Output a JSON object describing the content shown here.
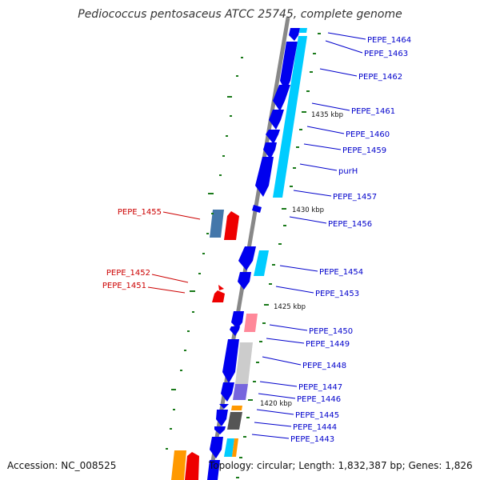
{
  "title": "Pediococcus pentosaceus ATCC 25745, complete genome",
  "footer": {
    "accession": "Accession: NC_008525",
    "topology": "Topology: circular; Length: 1,832,387 bp; Genes: 1,826"
  },
  "colors": {
    "backbone": "#888888",
    "forward_label": "#0000cc",
    "reverse_label": "#cc0000",
    "tick": "#1a7a1a"
  },
  "scale_labels": [
    "1435 kbp",
    "1430 kbp",
    "1425 kbp",
    "1420 kbp"
  ],
  "gene_labels_forward": [
    "PEPE_1464",
    "PEPE_1463",
    "PEPE_1462",
    "PEPE_1461",
    "PEPE_1460",
    "PEPE_1459",
    "purH",
    "PEPE_1457",
    "PEPE_1456",
    "PEPE_1454",
    "PEPE_1453",
    "PEPE_1450",
    "PEPE_1449",
    "PEPE_1448",
    "PEPE_1447",
    "PEPE_1446",
    "PEPE_1445",
    "PEPE_1444",
    "PEPE_1443"
  ],
  "gene_labels_reverse": [
    "PEPE_1455",
    "PEPE_1452",
    "PEPE_1451"
  ]
}
